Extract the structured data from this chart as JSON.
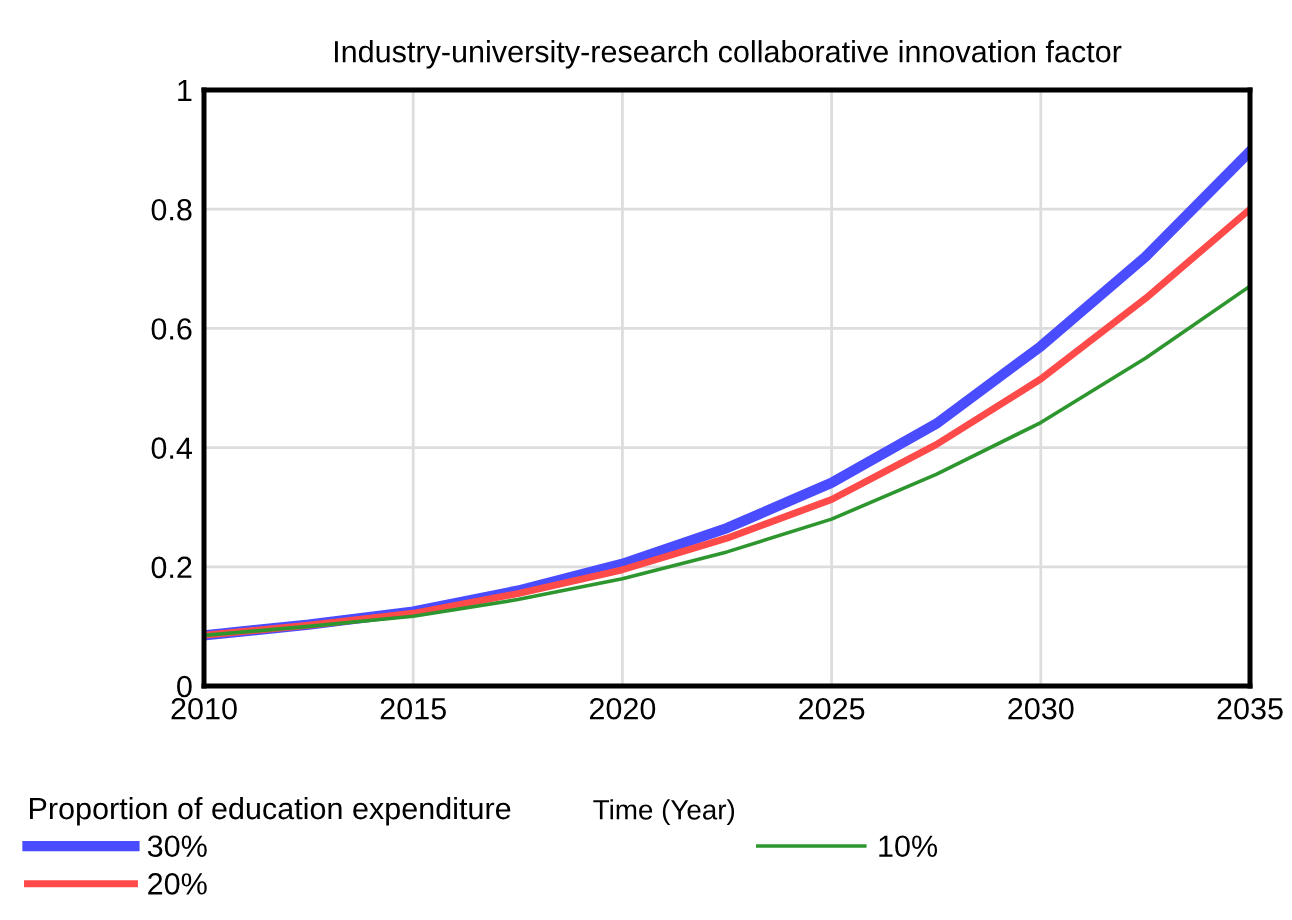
{
  "chart_data": {
    "type": "line",
    "title": "Industry-university-research collaborative innovation factor",
    "xlabel": "Time (Year)",
    "legend_title": "Proportion of education expenditure",
    "x": [
      2010,
      2012.5,
      2015,
      2017.5,
      2020,
      2022.5,
      2025,
      2027.5,
      2030,
      2032.5,
      2035
    ],
    "series": [
      {
        "name": "30%",
        "color": "#4a4cff",
        "values": [
          0.085,
          0.103,
          0.125,
          0.16,
          0.205,
          0.265,
          0.341,
          0.44,
          0.57,
          0.72,
          0.897
        ]
      },
      {
        "name": "20%",
        "color": "#ff4a4a",
        "values": [
          0.085,
          0.102,
          0.122,
          0.155,
          0.195,
          0.248,
          0.313,
          0.405,
          0.515,
          0.65,
          0.8
        ]
      },
      {
        "name": "10%",
        "color": "#2e962e",
        "values": [
          0.085,
          0.1,
          0.117,
          0.145,
          0.18,
          0.225,
          0.28,
          0.355,
          0.442,
          0.55,
          0.671
        ]
      }
    ],
    "xlim": [
      2010,
      2035
    ],
    "xticks": [
      2010,
      2015,
      2020,
      2025,
      2030,
      2035
    ],
    "ylim": [
      0,
      1
    ],
    "yticks": [
      0,
      0.2,
      0.4,
      0.6,
      0.8,
      1
    ],
    "grid": true,
    "legend": "bottom",
    "marker": "none",
    "line_style": "solid"
  }
}
